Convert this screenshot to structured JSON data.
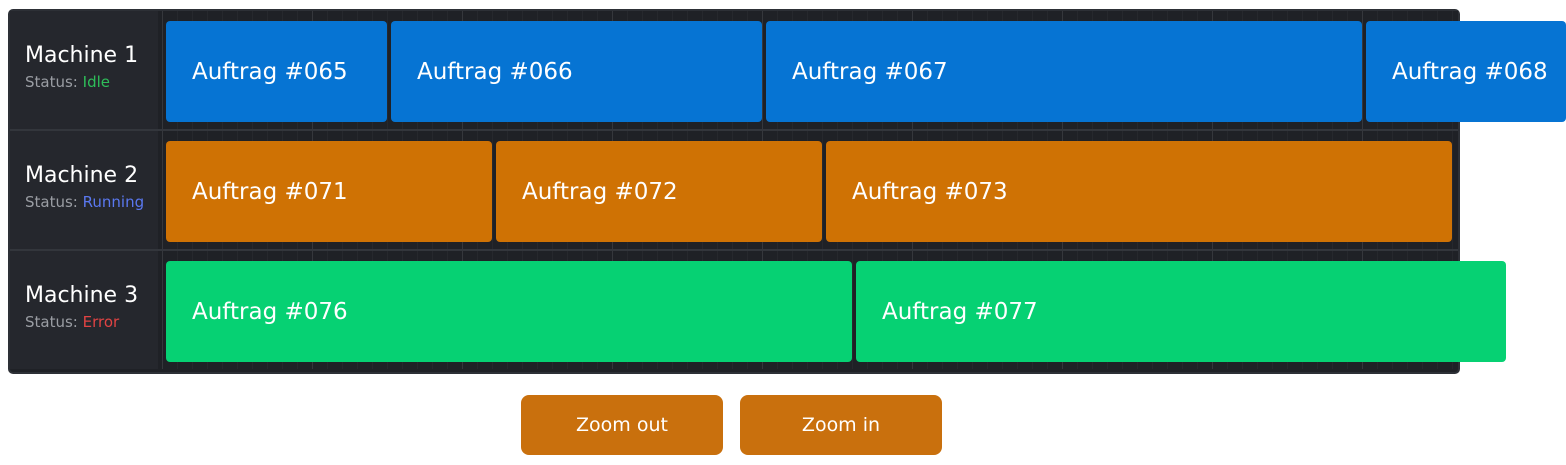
{
  "machines": [
    {
      "name": "Machine 1",
      "status_label": "Status:",
      "status": "Idle",
      "color": "#0674d3",
      "jobs": [
        "Auftrag #065",
        "Auftrag #066",
        "Auftrag #067",
        "Auftrag #068"
      ]
    },
    {
      "name": "Machine 2",
      "status_label": "Status:",
      "status": "Running",
      "color": "#cf7204",
      "jobs": [
        "Auftrag #071",
        "Auftrag #072",
        "Auftrag #073"
      ]
    },
    {
      "name": "Machine 3",
      "status_label": "Status:",
      "status": "Error",
      "color": "#06d173",
      "jobs": [
        "Auftrag #076",
        "Auftrag #077"
      ]
    }
  ],
  "status_colors": {
    "idle": "#2ebd59",
    "running": "#5a78f0",
    "error": "#e04343"
  },
  "controls": {
    "zoom_out_label": "Zoom out",
    "zoom_in_label": "Zoom in"
  }
}
